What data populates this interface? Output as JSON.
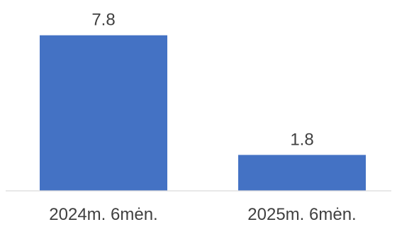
{
  "chart_data": {
    "type": "bar",
    "categories": [
      "2024m. 6mėn.",
      "2025m. 6mėn."
    ],
    "values": [
      7.8,
      1.8
    ],
    "data_labels": [
      "7.8",
      "1.8"
    ],
    "title": "",
    "xlabel": "",
    "ylabel": "",
    "ylim": [
      0,
      9
    ],
    "grid": false,
    "legend": "none",
    "colors": {
      "bar": "#4472C4",
      "axis": "#D9D9D9",
      "text": "#404040"
    }
  }
}
